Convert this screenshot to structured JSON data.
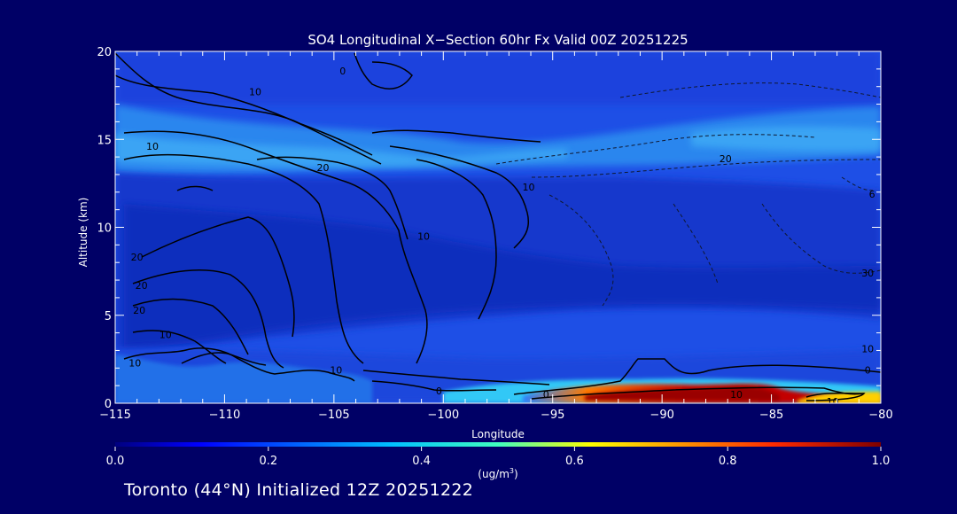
{
  "chart_data": {
    "type": "heatmap",
    "title": "SO4 Longitudinal X−Section 60hr  Fx Valid 00Z 20251225",
    "xlabel": "Longitude",
    "ylabel": "Altitude (km)",
    "xlim": [
      -115,
      -80
    ],
    "ylim": [
      0,
      20
    ],
    "x_ticks": [
      -115,
      -110,
      -105,
      -100,
      -95,
      -90,
      -85,
      -80
    ],
    "x_tick_labels": [
      "−115",
      "−110",
      "−105",
      "−100",
      "−95",
      "−90",
      "−85",
      "−80"
    ],
    "y_ticks": [
      0,
      5,
      10,
      15,
      20
    ],
    "y_tick_labels": [
      "0",
      "5",
      "10",
      "15",
      "20"
    ],
    "colorbar": {
      "min": 0.0,
      "max": 1.0,
      "ticks": [
        0.0,
        0.2,
        0.4,
        0.6,
        0.8,
        1.0
      ],
      "tick_labels": [
        "0.0",
        "0.2",
        "0.4",
        "0.6",
        "0.8",
        "1.0"
      ],
      "units_base": "(ug/m",
      "units_sup": "3",
      "units_end": ")"
    },
    "contour_labels": [
      {
        "text": "0",
        "lon": -104.6,
        "alt": 18.9
      },
      {
        "text": "10",
        "lon": -108.6,
        "alt": 17.7
      },
      {
        "text": "10",
        "lon": -113.3,
        "alt": 14.6
      },
      {
        "text": "20",
        "lon": -105.5,
        "alt": 13.4
      },
      {
        "text": "10",
        "lon": -96.1,
        "alt": 12.3
      },
      {
        "text": "10",
        "lon": -100.9,
        "alt": 9.5
      },
      {
        "text": "20",
        "lon": -87.1,
        "alt": 13.9
      },
      {
        "text": "6",
        "lon": -80.4,
        "alt": 11.9
      },
      {
        "text": "30",
        "lon": -80.6,
        "alt": 7.4
      },
      {
        "text": "20",
        "lon": -114.0,
        "alt": 8.3
      },
      {
        "text": "20",
        "lon": -113.8,
        "alt": 6.7
      },
      {
        "text": "20",
        "lon": -113.9,
        "alt": 5.3
      },
      {
        "text": "10",
        "lon": -112.7,
        "alt": 3.9
      },
      {
        "text": "10",
        "lon": -114.1,
        "alt": 2.3
      },
      {
        "text": "10",
        "lon": -104.9,
        "alt": 1.9
      },
      {
        "text": "0",
        "lon": -100.2,
        "alt": 0.7
      },
      {
        "text": "0",
        "lon": -95.3,
        "alt": 0.5
      },
      {
        "text": "10",
        "lon": -80.6,
        "alt": 3.1
      },
      {
        "text": "0",
        "lon": -80.6,
        "alt": 1.9
      },
      {
        "text": "10",
        "lon": -86.6,
        "alt": 0.5
      },
      {
        "text": "10",
        "lon": -82.2,
        "alt": 0.1
      }
    ],
    "footer": "Toronto (44°N) Initialized 12Z 20251222"
  }
}
